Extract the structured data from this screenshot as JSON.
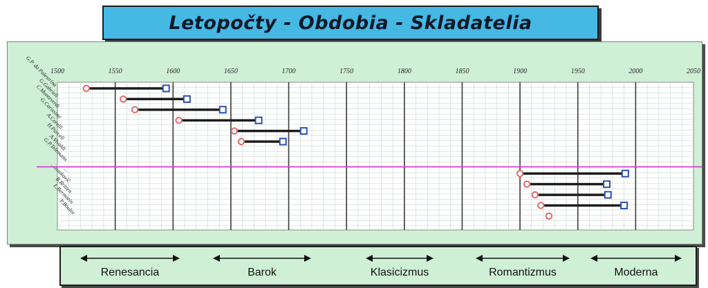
{
  "title": "Letopočty - Obdobia - Skladatelia",
  "colors": {
    "title_bg": "#45b8e4",
    "panel_bg": "#cff0d5",
    "bar": "#1c1c1c",
    "birth_marker": "#e06a6a",
    "death_marker": "#2a4fb5",
    "reference_line": "#d82fd8"
  },
  "chart_data": {
    "type": "timeline",
    "title": "Letopočty - Obdobia - Skladatelia",
    "x_ticks": [
      1500,
      1550,
      1600,
      1650,
      1700,
      1750,
      1800,
      1850,
      1900,
      1950,
      2000,
      2050
    ],
    "xlim": [
      1500,
      2050
    ],
    "grid": true,
    "marker_start": "circle",
    "marker_end": "square",
    "reference_line_label": "",
    "composers": [
      {
        "name": "G.P. da Palestrina",
        "start": 1525,
        "end": 1594
      },
      {
        "name": "G.Gabrieli",
        "start": 1557,
        "end": 1612
      },
      {
        "name": "C.Monteverdi",
        "start": 1567,
        "end": 1643
      },
      {
        "name": "G.Carissimi",
        "start": 1605,
        "end": 1674
      },
      {
        "name": "A.Corelli",
        "start": 1653,
        "end": 1713
      },
      {
        "name": "H.Purcell",
        "start": 1659,
        "end": 1695
      },
      {
        "name": "A.Vivaldi",
        "start": null,
        "end": null
      },
      {
        "name": "G.P.Telemann",
        "start": null,
        "end": null
      },
      {
        "name": "...",
        "start": 1900,
        "end": 1991
      },
      {
        "name": "...ostakovič",
        "start": 1906,
        "end": 1975
      },
      {
        "name": "B.Britten",
        "start": 1913,
        "end": 1976
      },
      {
        "name": "L.Bernstein",
        "start": 1918,
        "end": 1990
      },
      {
        "name": "P.Boulez",
        "start": 1925,
        "end": null
      }
    ]
  },
  "eras": [
    {
      "label": "Renesancia"
    },
    {
      "label": "Barok"
    },
    {
      "label": "Klasicizmus"
    },
    {
      "label": "Romantizmus"
    },
    {
      "label": "Moderna"
    }
  ]
}
